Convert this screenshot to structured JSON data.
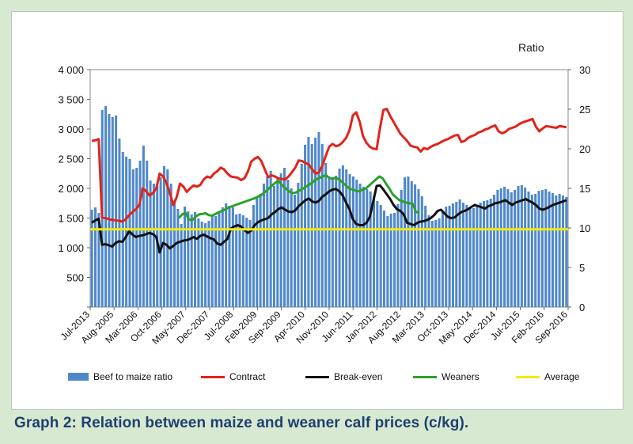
{
  "caption": "Graph 2: Relation between maize and weaner calf prices (c/kg).",
  "right_axis_title": "Ratio",
  "colors": {
    "bars": "#4f88c9",
    "contract": "#e2231a",
    "breakeven": "#111111",
    "weaners": "#2ca02c",
    "average": "#f2ea0a",
    "background": "#d7e9d0",
    "caption": "#1f3f6f"
  },
  "legend": [
    {
      "label": "Beef to maize ratio",
      "kind": "bar",
      "color": "#4f88c9"
    },
    {
      "label": "Contract",
      "kind": "line",
      "color": "#e2231a"
    },
    {
      "label": "Break-even",
      "kind": "line",
      "color": "#111111"
    },
    {
      "label": "Weaners",
      "kind": "line",
      "color": "#2ca02c"
    },
    {
      "label": "Average",
      "kind": "line",
      "color": "#f2ea0a"
    }
  ],
  "chart_data": {
    "type": "bar+line",
    "title": "",
    "y_left": {
      "min": 0,
      "max": 4000,
      "ticks": [
        "",
        "500",
        "1 000",
        "1 500",
        "2 000",
        "2 500",
        "3 000",
        "3 500",
        "4 000"
      ]
    },
    "y_right": {
      "label": "Ratio",
      "min": 0,
      "max": 30,
      "ticks": [
        "0",
        "5",
        "10",
        "15",
        "20",
        "25",
        "30"
      ]
    },
    "x_tick_labels": [
      "Jul-2013",
      "Aug-2005",
      "Mar-2006",
      "Oct-2006",
      "May-2007",
      "Dec-2007",
      "Jul-2008",
      "Feb-2009",
      "Sep-2009",
      "Apr-2010",
      "Nov-2010",
      "Jun-2011",
      "Jan-2012",
      "Aug-2012",
      "Mar-2013",
      "Oct-2013",
      "May-2014",
      "Dec-2014",
      "Jul-2015",
      "Feb-2016",
      "Sep-2016"
    ],
    "series": [
      {
        "name": "Beef to maize ratio",
        "axis": "right",
        "type": "bar",
        "values": [
          12.3,
          12.6,
          11.9,
          24.9,
          25.4,
          24.4,
          24.0,
          24.2,
          21.3,
          19.6,
          19.0,
          18.7,
          17.4,
          17.6,
          18.5,
          20.4,
          18.5,
          16.0,
          15.6,
          15.3,
          16.4,
          17.8,
          17.4,
          15.6,
          13.2,
          12.4,
          10.5,
          12.7,
          12.1,
          11.7,
          12.0,
          11.2,
          10.8,
          10.6,
          10.9,
          11.7,
          11.5,
          12.0,
          12.6,
          13.1,
          12.8,
          12.6,
          11.7,
          11.8,
          11.6,
          11.3,
          11.0,
          12.9,
          13.8,
          14.3,
          15.6,
          16.5,
          17.2,
          15.3,
          16.2,
          16.9,
          17.6,
          16.1,
          15.0,
          14.2,
          15.7,
          18.1,
          20.5,
          21.5,
          20.6,
          21.4,
          22.1,
          20.6,
          18.2,
          16.5,
          16.4,
          16.6,
          17.5,
          17.9,
          17.4,
          16.8,
          16.5,
          16.1,
          15.6,
          15.2,
          14.9,
          14.6,
          14.0,
          13.4,
          12.9,
          12.2,
          11.5,
          11.8,
          11.9,
          13.0,
          14.8,
          16.4,
          16.5,
          15.9,
          15.5,
          14.9,
          14.0,
          12.8,
          11.6,
          10.9,
          11.0,
          11.2,
          12.1,
          12.7,
          12.8,
          13.1,
          13.3,
          13.6,
          13.2,
          12.9,
          12.6,
          12.5,
          12.7,
          13.2,
          13.4,
          13.5,
          13.7,
          14.2,
          14.8,
          15.0,
          15.2,
          14.9,
          14.5,
          14.8,
          15.3,
          15.4,
          15.1,
          14.6,
          14.2,
          14.3,
          14.7,
          14.8,
          14.9,
          14.6,
          14.4,
          14.1,
          14.3,
          14.1,
          13.9
        ]
      },
      {
        "name": "Contract",
        "axis": "left",
        "type": "line",
        "values": [
          2800,
          2810,
          2830,
          1510,
          1500,
          1480,
          1470,
          1460,
          1455,
          1440,
          1480,
          1550,
          1600,
          1650,
          1720,
          2000,
          1950,
          1880,
          1920,
          2000,
          2250,
          2200,
          2090,
          1920,
          1720,
          1850,
          2080,
          2030,
          1940,
          2000,
          2050,
          2030,
          2060,
          2150,
          2200,
          2180,
          2250,
          2290,
          2350,
          2320,
          2250,
          2200,
          2190,
          2180,
          2140,
          2170,
          2280,
          2450,
          2500,
          2530,
          2460,
          2320,
          2190,
          2220,
          2200,
          2170,
          2160,
          2150,
          2200,
          2270,
          2350,
          2470,
          2460,
          2430,
          2400,
          2320,
          2250,
          2270,
          2380,
          2550,
          2700,
          2750,
          2710,
          2730,
          2780,
          2850,
          2980,
          3230,
          3280,
          3120,
          2880,
          2770,
          2700,
          2670,
          2660,
          3020,
          3320,
          3340,
          3220,
          3120,
          3020,
          2920,
          2860,
          2800,
          2720,
          2700,
          2690,
          2620,
          2680,
          2660,
          2700,
          2730,
          2750,
          2780,
          2810,
          2830,
          2860,
          2890,
          2900,
          2780,
          2800,
          2850,
          2880,
          2900,
          2940,
          2960,
          2990,
          3010,
          3040,
          3060,
          2960,
          2930,
          2950,
          3000,
          3020,
          3040,
          3080,
          3110,
          3130,
          3150,
          3170,
          3040,
          2960,
          3010,
          3050,
          3040,
          3030,
          3020,
          3050,
          3040,
          3030
        ]
      },
      {
        "name": "Break-even",
        "axis": "left",
        "type": "line",
        "values": [
          1420,
          1460,
          1490,
          1050,
          1060,
          1040,
          1020,
          1080,
          1110,
          1100,
          1180,
          1280,
          1220,
          1180,
          1200,
          1210,
          1230,
          1250,
          1230,
          1180,
          920,
          1080,
          1050,
          990,
          1030,
          1080,
          1100,
          1120,
          1130,
          1150,
          1180,
          1150,
          1200,
          1220,
          1190,
          1160,
          1140,
          1070,
          1050,
          1100,
          1150,
          1320,
          1360,
          1380,
          1360,
          1300,
          1250,
          1290,
          1380,
          1430,
          1460,
          1480,
          1500,
          1560,
          1600,
          1650,
          1680,
          1640,
          1610,
          1600,
          1630,
          1700,
          1750,
          1800,
          1830,
          1780,
          1760,
          1790,
          1860,
          1900,
          1950,
          1980,
          1990,
          1950,
          1880,
          1760,
          1650,
          1480,
          1400,
          1380,
          1380,
          1420,
          1520,
          1780,
          2040,
          2050,
          1980,
          1900,
          1820,
          1720,
          1650,
          1620,
          1560,
          1420,
          1400,
          1380,
          1420,
          1440,
          1450,
          1470,
          1500,
          1550,
          1620,
          1640,
          1580,
          1520,
          1500,
          1510,
          1560,
          1600,
          1620,
          1650,
          1690,
          1720,
          1700,
          1680,
          1660,
          1700,
          1720,
          1750,
          1760,
          1780,
          1800,
          1760,
          1720,
          1760,
          1780,
          1800,
          1820,
          1790,
          1760,
          1720,
          1660,
          1640,
          1660,
          1690,
          1720,
          1740,
          1760,
          1780,
          1800
        ]
      },
      {
        "name": "Weaners",
        "axis": "left",
        "type": "line",
        "values": [
          null,
          null,
          null,
          null,
          null,
          null,
          null,
          null,
          null,
          null,
          null,
          null,
          null,
          null,
          null,
          null,
          null,
          null,
          null,
          null,
          null,
          null,
          null,
          null,
          null,
          null,
          1500,
          1560,
          1590,
          1480,
          1460,
          1520,
          1560,
          1570,
          1580,
          1550,
          1540,
          1570,
          1600,
          1620,
          1650,
          1680,
          1700,
          1720,
          1740,
          1760,
          1780,
          1800,
          1820,
          1840,
          1870,
          1900,
          1950,
          2000,
          2050,
          2100,
          2120,
          2050,
          2000,
          1950,
          1920,
          1930,
          1960,
          1990,
          2030,
          2060,
          2100,
          2150,
          2170,
          2200,
          2220,
          2180,
          2160,
          2180,
          2150,
          2100,
          2050,
          2000,
          1980,
          1960,
          1950,
          1980,
          2000,
          2050,
          2100,
          2150,
          2200,
          2170,
          2080,
          2000,
          1900,
          1850,
          1800,
          1780,
          1760,
          1750,
          1740,
          1600,
          1590,
          null,
          null,
          null,
          null,
          null,
          null,
          null,
          null,
          null,
          null,
          null,
          null,
          null,
          null,
          null,
          null,
          null,
          null,
          null,
          null,
          null,
          null,
          null,
          null,
          null,
          null,
          null,
          null,
          null,
          null,
          null,
          null,
          null,
          null,
          null,
          null,
          null,
          null,
          null,
          null,
          null,
          null,
          null,
          null
        ]
      },
      {
        "name": "Average",
        "axis": "left",
        "type": "line",
        "constant": 1310
      }
    ]
  }
}
